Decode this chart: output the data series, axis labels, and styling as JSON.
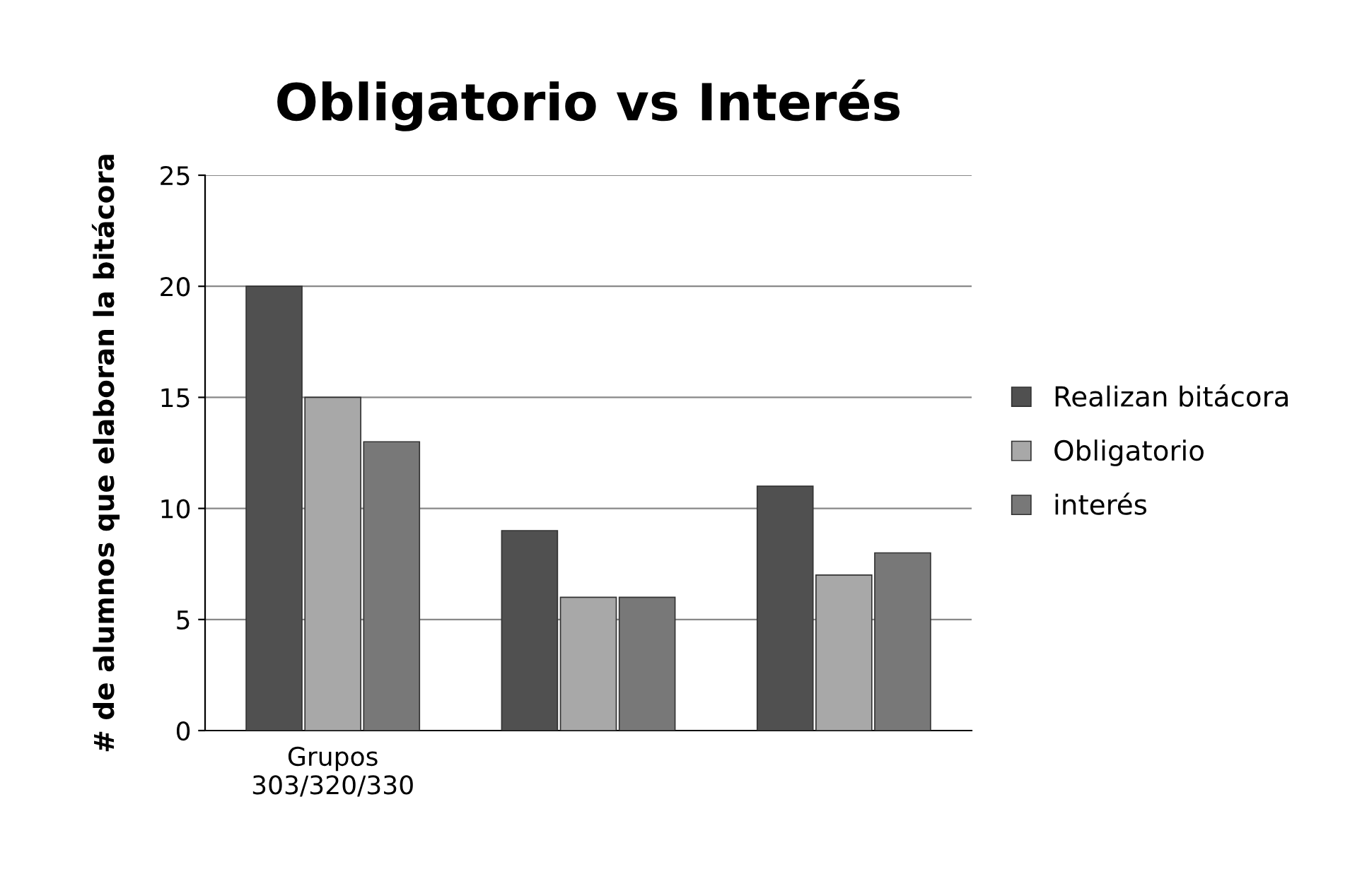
{
  "chart_data": {
    "type": "bar",
    "title": "Obligatorio vs Interés",
    "ylabel": "# de alumnos que elaboran la bitácora",
    "categories": [
      "Grupos\n303/320/330",
      null,
      null
    ],
    "series": [
      {
        "name": "Realizan bitácora",
        "color": "#505050",
        "values": [
          20,
          9,
          11
        ]
      },
      {
        "name": "Obligatorio",
        "color": "#a8a8a8",
        "values": [
          15,
          6,
          7
        ]
      },
      {
        "name": "interés",
        "color": "#787878",
        "values": [
          13,
          6,
          8
        ]
      }
    ],
    "ylim": [
      0,
      25
    ],
    "yticks": [
      0,
      5,
      10,
      15,
      20,
      25
    ],
    "grid": "y",
    "legend": "right"
  }
}
